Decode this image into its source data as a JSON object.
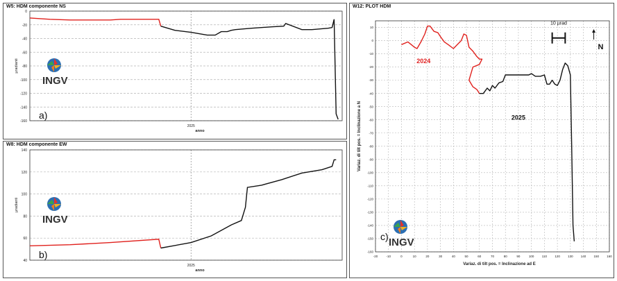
{
  "colors": {
    "red": "#e0201c",
    "black": "#111111",
    "grid": "#b5b5b5",
    "label_red": "#e02020"
  },
  "logos": [
    {
      "text": "INGV",
      "icon": "ingv-globe-icon"
    },
    {
      "text": "INGV",
      "icon": "ingv-globe-icon"
    },
    {
      "text": "INGV",
      "icon": "ingv-globe-icon"
    }
  ],
  "chart_data": [
    {
      "panel": "a",
      "type": "line",
      "title": "W5: HDM componente NS",
      "xlabel": "anno",
      "ylabel": "µradianti",
      "panel_label": "a)",
      "x_tick_labels": [
        "2025"
      ],
      "x_range": [
        2024.2,
        2025.75
      ],
      "x_divider": 2025.0,
      "y_ticks": [
        0,
        -20,
        -40,
        -60,
        -80,
        -100,
        -120,
        -140,
        -160
      ],
      "ylim": [
        -160,
        0
      ],
      "grid": true,
      "series": [
        {
          "color_key": "red",
          "x": [
            2024.2,
            2024.3,
            2024.4,
            2024.5,
            2024.6,
            2024.65,
            2024.84,
            2024.85
          ],
          "y": [
            -10,
            -12,
            -13,
            -13,
            -13,
            -12,
            -12,
            -22
          ]
        },
        {
          "color_key": "black",
          "x": [
            2024.85,
            2024.92,
            2025.0,
            2025.08,
            2025.12,
            2025.15,
            2025.18,
            2025.2,
            2025.22,
            2025.3,
            2025.4,
            2025.46,
            2025.47,
            2025.55,
            2025.6,
            2025.68,
            2025.7,
            2025.71,
            2025.72,
            2025.73
          ],
          "y": [
            -22,
            -28,
            -31,
            -35,
            -35,
            -30,
            -30,
            -28,
            -27,
            -25,
            -23,
            -22,
            -18,
            -27,
            -27,
            -25,
            -24,
            -12,
            -150,
            -158
          ]
        }
      ]
    },
    {
      "panel": "b",
      "type": "line",
      "title": "W8: HDM componente EW",
      "xlabel": "anno",
      "ylabel": "µradianti",
      "panel_label": "b)",
      "x_tick_labels": [
        "2025"
      ],
      "x_range": [
        2024.2,
        2025.75
      ],
      "x_divider": 2025.0,
      "y_ticks": [
        40,
        60,
        80,
        100,
        120,
        140
      ],
      "ylim": [
        40,
        140
      ],
      "grid": true,
      "series": [
        {
          "color_key": "red",
          "x": [
            2024.2,
            2024.4,
            2024.6,
            2024.84,
            2024.85
          ],
          "y": [
            53,
            54,
            56,
            59,
            51
          ]
        },
        {
          "color_key": "black",
          "x": [
            2024.85,
            2025.0,
            2025.1,
            2025.2,
            2025.25,
            2025.27,
            2025.28,
            2025.35,
            2025.45,
            2025.55,
            2025.65,
            2025.7,
            2025.71,
            2025.72
          ],
          "y": [
            51,
            56,
            62,
            72,
            76,
            88,
            106,
            108,
            113,
            119,
            122,
            125,
            131,
            131
          ]
        }
      ]
    },
    {
      "panel": "c",
      "type": "line",
      "title": "W12: PLOT HDM",
      "xlabel": "Variaz. di tilt pos. = Inclinazione ad E",
      "ylabel": "Variaz. di tilt pos. = Inclinazione a N",
      "panel_label": "c)",
      "scale_label": "10 µrad",
      "north_label": "N",
      "x_ticks": [
        -20,
        -10,
        0,
        10,
        20,
        30,
        40,
        50,
        60,
        70,
        80,
        90,
        100,
        110,
        120,
        130,
        140,
        150,
        160
      ],
      "y_ticks": [
        10,
        0,
        -10,
        -20,
        -30,
        -40,
        -50,
        -60,
        -70,
        -80,
        -90,
        -100,
        -110,
        -120,
        -130,
        -140,
        -150,
        -160
      ],
      "xlim": [
        -20,
        160
      ],
      "ylim": [
        -160,
        15
      ],
      "grid": true,
      "series": [
        {
          "name": "2024",
          "color_key": "red",
          "label_at": [
            17,
            -17
          ],
          "x": [
            0,
            5,
            10,
            12,
            15,
            18,
            20,
            22,
            25,
            28,
            30,
            33,
            36,
            40,
            43,
            46,
            48,
            50,
            52,
            55,
            58,
            60,
            62,
            60,
            55,
            52,
            55,
            58,
            60
          ],
          "y": [
            -3,
            -1,
            -5,
            -6,
            -1,
            5,
            11,
            11,
            7,
            6,
            3,
            -1,
            -3,
            -6,
            -3,
            0,
            5,
            4,
            -5,
            -8,
            -12,
            -14,
            -14,
            -18,
            -20,
            -30,
            -35,
            -37,
            -40
          ]
        },
        {
          "name": "2025",
          "color_key": "black",
          "label_at": [
            90,
            -60
          ],
          "x": [
            60,
            63,
            66,
            68,
            70,
            72,
            75,
            78,
            80,
            85,
            90,
            95,
            98,
            100,
            103,
            107,
            110,
            112,
            114,
            116,
            118,
            120,
            122,
            124,
            126,
            128,
            130,
            131,
            132,
            133
          ],
          "y": [
            -40,
            -40,
            -36,
            -38,
            -34,
            -36,
            -32,
            -31,
            -26,
            -26,
            -26,
            -26,
            -26,
            -25,
            -27,
            -27,
            -26,
            -33,
            -33,
            -30,
            -33,
            -34,
            -30,
            -22,
            -17,
            -19,
            -26,
            -80,
            -140,
            -152
          ]
        }
      ]
    }
  ]
}
